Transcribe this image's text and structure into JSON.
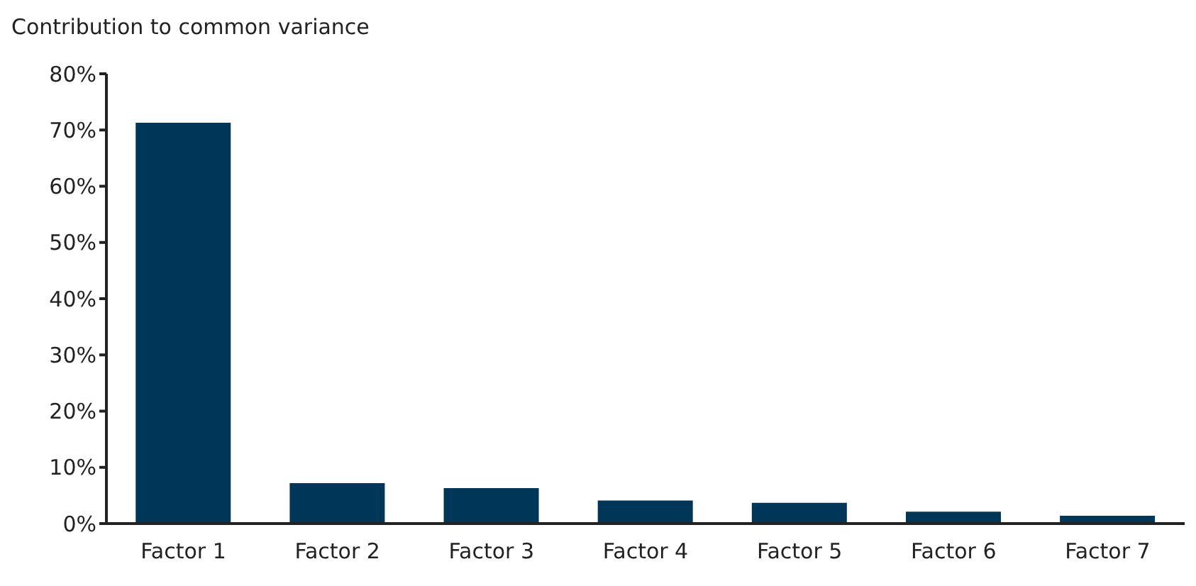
{
  "chart_data": {
    "type": "bar",
    "title": "Contribution to common variance",
    "categories": [
      "Factor 1",
      "Factor 2",
      "Factor 3",
      "Factor 4",
      "Factor 5",
      "Factor 6",
      "Factor 7"
    ],
    "values": [
      71.3,
      7.2,
      6.3,
      4.1,
      3.7,
      2.1,
      1.4
    ],
    "color": "#003658",
    "ylim": [
      0,
      80
    ],
    "yticks": [
      {
        "value": 0,
        "label": "0%"
      },
      {
        "value": 10,
        "label": "10%"
      },
      {
        "value": 20,
        "label": "20%"
      },
      {
        "value": 30,
        "label": "30%"
      },
      {
        "value": 40,
        "label": "40%"
      },
      {
        "value": 50,
        "label": "50%"
      },
      {
        "value": 60,
        "label": "60%"
      },
      {
        "value": 70,
        "label": "70%"
      },
      {
        "value": 80,
        "label": "80%"
      }
    ],
    "grid": false,
    "legend": false
  }
}
